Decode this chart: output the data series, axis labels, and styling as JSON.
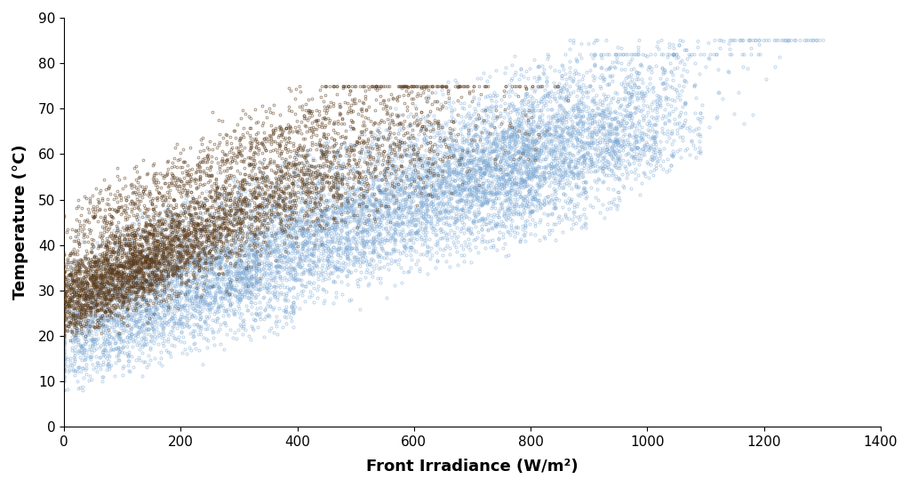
{
  "title": "",
  "xlabel": "Front Irradiance (W/m²)",
  "ylabel": "Temperature (°C)",
  "xlim": [
    0,
    1400
  ],
  "ylim": [
    0,
    90
  ],
  "xticks": [
    0,
    200,
    400,
    600,
    800,
    1000,
    1200,
    1400
  ],
  "yticks": [
    0,
    10,
    20,
    30,
    40,
    50,
    60,
    70,
    80,
    90
  ],
  "background_color": "#ffffff",
  "blue_color": "#7AA7D4",
  "dark_color": "#5a3a1a",
  "xlabel_fontsize": 13,
  "ylabel_fontsize": 13,
  "tick_fontsize": 11,
  "seed": 42
}
